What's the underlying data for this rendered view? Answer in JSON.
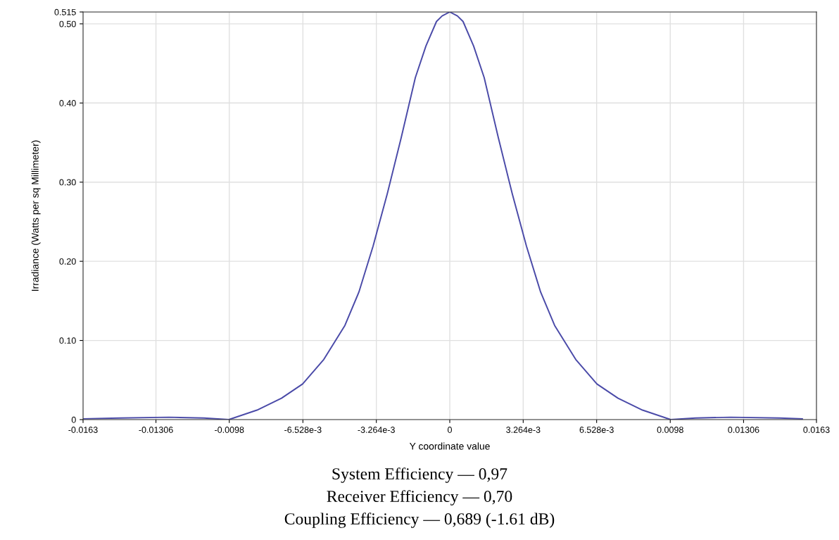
{
  "chart_data": {
    "type": "line",
    "xlabel": "Y coordinate value",
    "ylabel": "Irradiance (Watts per sq Millimeter)",
    "x": [
      -0.0163,
      -0.01467,
      -0.01248,
      -0.01092,
      -0.00982,
      -0.00857,
      -0.00748,
      -0.00654,
      -0.0056,
      -0.00466,
      -0.00404,
      -0.00341,
      -0.00278,
      -0.00216,
      -0.00153,
      -0.00106,
      -0.00059,
      -0.00034,
      0,
      0.00034,
      0.00059,
      0.00106,
      0.00153,
      0.00216,
      0.00278,
      0.00341,
      0.00404,
      0.00466,
      0.0056,
      0.00654,
      0.00748,
      0.00857,
      0.00982,
      0.01092,
      0.01248,
      0.01467,
      0.01567
    ],
    "series": [
      {
        "color": "#4a4aa8",
        "values": [
          0.001,
          0.002,
          0.003,
          0.002,
          0,
          0.012,
          0.027,
          0.045,
          0.076,
          0.119,
          0.161,
          0.219,
          0.285,
          0.356,
          0.432,
          0.472,
          0.503,
          0.51,
          0.515,
          0.51,
          0.503,
          0.472,
          0.432,
          0.356,
          0.285,
          0.219,
          0.161,
          0.119,
          0.076,
          0.045,
          0.027,
          0.012,
          0,
          0.002,
          0.003,
          0.002,
          0.001
        ]
      }
    ],
    "xlim": [
      -0.0163,
      0.0163
    ],
    "ylim": [
      0,
      0.515
    ],
    "xticks": [
      -0.0163,
      -0.01306,
      -0.0098,
      {
        "value": -0.006528,
        "label": "-6.528e-3"
      },
      {
        "value": -0.003264,
        "label": "-3.264e-3"
      },
      0,
      {
        "value": 0.003264,
        "label": "3.264e-3"
      },
      {
        "value": 0.006528,
        "label": "6.528e-3"
      },
      0.0098,
      0.01306,
      0.0163
    ],
    "yticks": [
      0,
      {
        "value": 0.1,
        "label": "0.10"
      },
      {
        "value": 0.2,
        "label": "0.20"
      },
      {
        "value": 0.3,
        "label": "0.30"
      },
      {
        "value": 0.4,
        "label": "0.40"
      },
      {
        "value": 0.5,
        "label": "0.50"
      },
      0.515
    ],
    "grid": true,
    "marker": "none",
    "line_style": "solid",
    "annotations": [
      "System Efficiency — 0,97",
      "Receiver Efficiency — 0,70",
      "Coupling Efficiency — 0,689 (-1.61 dB)"
    ]
  }
}
